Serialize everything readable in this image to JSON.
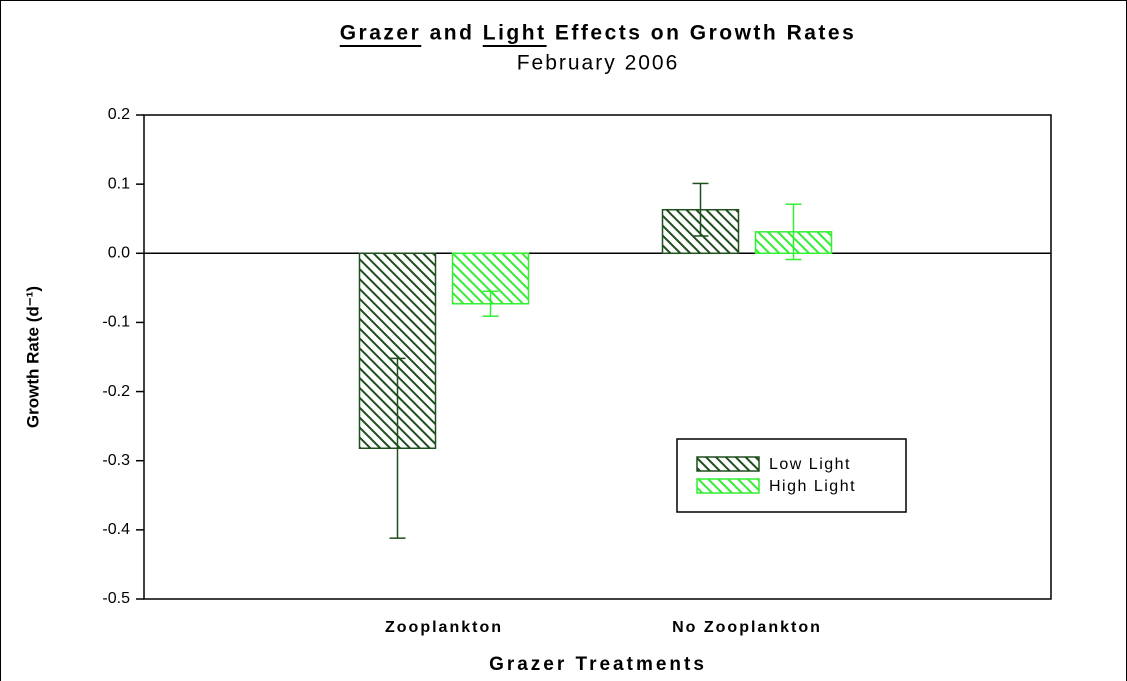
{
  "chart_data": {
    "type": "bar",
    "title": "Grazer and Light Effects on Growth Rates",
    "subtitle": "February 2006",
    "x_label": "Grazer Treatments",
    "y_label": "Growth Rate (d⁻¹)",
    "categories": [
      "Zooplankton",
      "No Zooplankton"
    ],
    "series": [
      {
        "name": "Low Light",
        "color": "#1f4f1f",
        "values": [
          -0.282,
          0.063
        ],
        "errors": [
          0.13,
          0.038
        ]
      },
      {
        "name": "High Light",
        "color": "#33ee33",
        "values": [
          -0.073,
          0.031
        ],
        "errors": [
          0.018,
          0.04
        ]
      }
    ],
    "ylim": [
      -0.5,
      0.2
    ],
    "yticks": [
      0.2,
      0.1,
      {
        "value": 0,
        "label": "0.0"
      },
      -0.1,
      -0.2,
      -0.3,
      -0.4,
      -0.5
    ],
    "legend": "lower right"
  }
}
